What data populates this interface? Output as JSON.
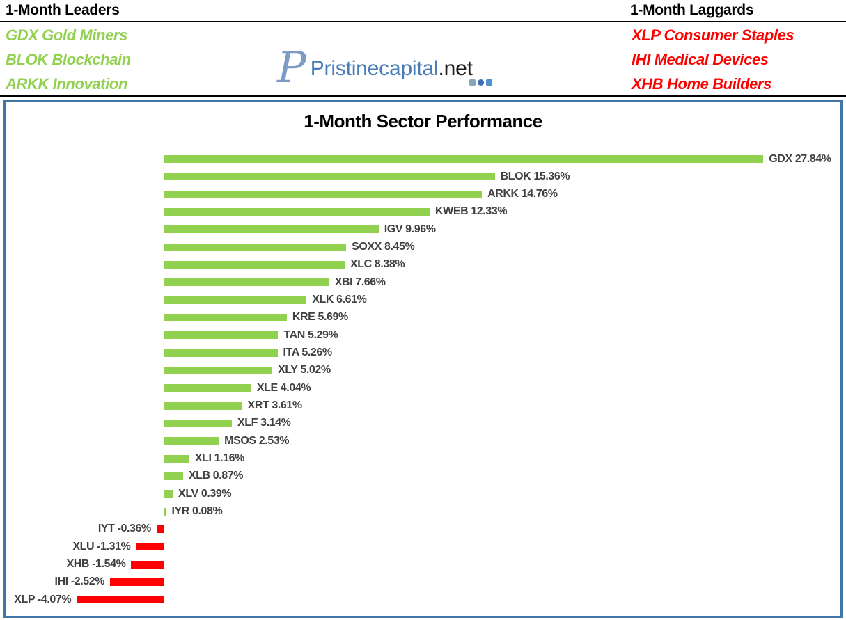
{
  "header": {
    "leaders": {
      "title": "1-Month Leaders",
      "items": [
        "GDX Gold Miners",
        "BLOK Blockchain",
        "ARKK Innovation"
      ]
    },
    "laggards": {
      "title": "1-Month Laggards",
      "items": [
        "XLP Consumer Staples",
        "IHI Medical Devices",
        "XHB Home Builders"
      ]
    },
    "logo": {
      "monogram": "P",
      "brand": "Pristinecapital",
      "tld": ".net"
    }
  },
  "chart_data": {
    "type": "bar",
    "orientation": "horizontal",
    "title": "1-Month Sector Performance",
    "value_suffix": "%",
    "categories": [
      "GDX",
      "BLOK",
      "ARKK",
      "KWEB",
      "IGV",
      "SOXX",
      "XLC",
      "XBI",
      "XLK",
      "KRE",
      "TAN",
      "ITA",
      "XLY",
      "XLE",
      "XRT",
      "XLF",
      "MSOS",
      "XLI",
      "XLB",
      "XLV",
      "IYR",
      "IYT",
      "XLU",
      "XHB",
      "IHI",
      "XLP"
    ],
    "values": [
      27.84,
      15.36,
      14.76,
      12.33,
      9.96,
      8.45,
      8.38,
      7.66,
      6.61,
      5.69,
      5.29,
      5.26,
      5.02,
      4.04,
      3.61,
      3.14,
      2.53,
      1.16,
      0.87,
      0.39,
      0.08,
      -0.36,
      -1.31,
      -1.54,
      -2.52,
      -4.07
    ],
    "xlim": [
      -4.07,
      27.84
    ],
    "grid": false,
    "legend": false,
    "positive_color": "#92D050",
    "negative_color": "#FF0000",
    "label_color": "#404040"
  },
  "colors": {
    "leaders_green": "#92D050",
    "laggards_red": "#FF0000",
    "chart_border_blue": "#4177A6",
    "logo_blue": "#4A7DB8",
    "heading_black": "#000000"
  }
}
